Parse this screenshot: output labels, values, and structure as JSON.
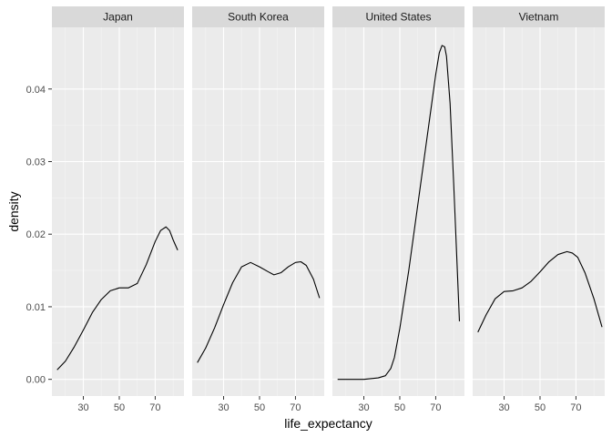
{
  "chart_data": {
    "type": "line",
    "xlabel": "life_expectancy",
    "ylabel": "density",
    "x_ticks": [
      30,
      50,
      70
    ],
    "y_ticks": [
      0.0,
      0.01,
      0.02,
      0.03,
      0.04
    ],
    "y_tick_labels": [
      "0.00",
      "0.01",
      "0.02",
      "0.03",
      "0.04"
    ],
    "xlim": [
      12.5,
      86
    ],
    "ylim": [
      -0.0023,
      0.0485
    ],
    "grid": true,
    "colors": {
      "panel_bg": "#ebebeb",
      "strip_bg": "#d9d9d9",
      "grid_major": "#ffffff",
      "grid_minor": "#f5f5f5",
      "line": "#000000"
    },
    "facets": [
      {
        "name": "Japan",
        "x": [
          15.4,
          20,
          25,
          30,
          35,
          40,
          45,
          50,
          55,
          60,
          65,
          70,
          73,
          76,
          78,
          80,
          82.5
        ],
        "y": [
          0.0013,
          0.0025,
          0.0045,
          0.0068,
          0.0092,
          0.011,
          0.0122,
          0.0126,
          0.0126,
          0.0132,
          0.0158,
          0.019,
          0.0205,
          0.021,
          0.0205,
          0.0192,
          0.0178
        ]
      },
      {
        "name": "South Korea",
        "x": [
          15.4,
          20,
          25,
          30,
          35,
          40,
          45,
          50,
          55,
          58,
          62,
          66,
          70,
          73,
          76,
          80,
          83.4
        ],
        "y": [
          0.0023,
          0.0043,
          0.0071,
          0.0103,
          0.0133,
          0.0155,
          0.0161,
          0.0155,
          0.0148,
          0.0144,
          0.0147,
          0.0155,
          0.0161,
          0.0162,
          0.0157,
          0.0138,
          0.0112
        ]
      },
      {
        "name": "United States",
        "x": [
          15.4,
          30,
          38,
          42,
          45,
          47,
          50,
          55,
          60,
          65,
          70,
          72,
          73.5,
          75,
          76,
          78,
          80,
          83.2
        ],
        "y": [
          0.0,
          0.0,
          0.0002,
          0.0005,
          0.0015,
          0.003,
          0.007,
          0.015,
          0.024,
          0.033,
          0.042,
          0.045,
          0.046,
          0.0458,
          0.0445,
          0.038,
          0.027,
          0.008
        ]
      },
      {
        "name": "Vietnam",
        "x": [
          15.4,
          20,
          25,
          30,
          35,
          40,
          45,
          50,
          55,
          60,
          65,
          68,
          71,
          75,
          80,
          84.5
        ],
        "y": [
          0.0065,
          0.0089,
          0.0111,
          0.0121,
          0.0122,
          0.0126,
          0.0135,
          0.0148,
          0.0162,
          0.0172,
          0.0176,
          0.0174,
          0.0168,
          0.0147,
          0.0111,
          0.0072
        ]
      }
    ]
  }
}
